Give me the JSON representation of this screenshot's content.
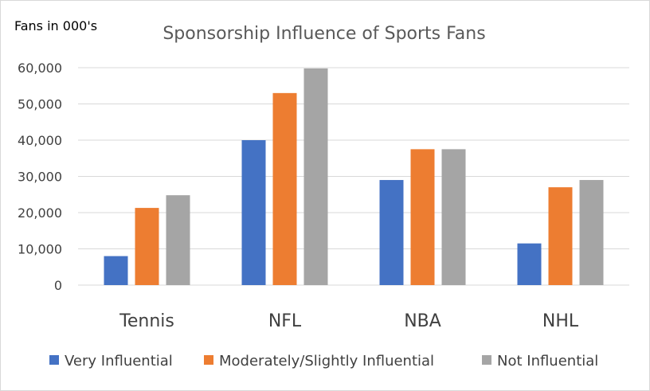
{
  "chart_data": {
    "type": "bar",
    "title": "Sponsorship Influence of Sports Fans",
    "ylabel": "Fans in 000's",
    "xlabel": "",
    "categories": [
      "Tennis",
      "NFL",
      "NBA",
      "NHL"
    ],
    "ylim": [
      0,
      60000
    ],
    "yticks": [
      0,
      10000,
      20000,
      30000,
      40000,
      50000,
      60000
    ],
    "ytick_labels": [
      "0",
      "10,000",
      "20,000",
      "30,000",
      "40,000",
      "50,000",
      "60,000"
    ],
    "grid": true,
    "legend_position": "bottom",
    "series": [
      {
        "name": "Very Influential",
        "color": "#4472c4",
        "values": [
          8000,
          40000,
          29000,
          11500
        ]
      },
      {
        "name": "Moderately/Slightly Influential",
        "color": "#ed7d31",
        "values": [
          21300,
          53000,
          37500,
          27000
        ]
      },
      {
        "name": "Not Influential",
        "color": "#a5a5a5",
        "values": [
          24800,
          59800,
          37500,
          29000
        ]
      }
    ]
  }
}
